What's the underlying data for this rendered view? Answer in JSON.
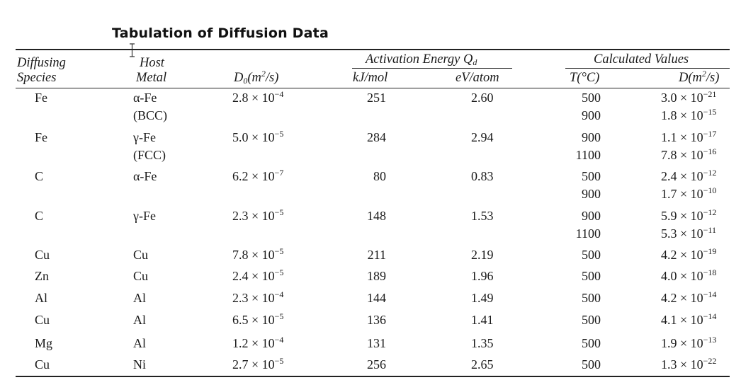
{
  "title": "Tabulation of Diffusion Data",
  "headers": {
    "diffusing": [
      "Diffusing",
      "Species"
    ],
    "host": [
      "Host",
      "Metal"
    ],
    "d0": {
      "main": "D",
      "sub": "0",
      "unit_pre": "(m",
      "unit_sup": "2",
      "unit_post": "/s)"
    },
    "activation": {
      "main": "Activation Energy Q",
      "sub": "d"
    },
    "kj": "kJ/mol",
    "ev": "eV/atom",
    "calculated": "Calculated Values",
    "t": "T(°C)",
    "d": {
      "main": "D(m",
      "sup": "2",
      "post": "/s)"
    }
  },
  "rows": [
    {
      "species": "Fe",
      "host": "α-Fe",
      "host_note": "(BCC)",
      "d0_m": "2.8 × 10",
      "d0_e": "−4",
      "kj": "251",
      "ev": "2.60",
      "t1": "500",
      "d1_m": "3.0 × 10",
      "d1_e": "−21",
      "t2": "900",
      "d2_m": "1.8 × 10",
      "d2_e": "−15"
    },
    {
      "species": "Fe",
      "host": "γ-Fe",
      "host_note": "(FCC)",
      "d0_m": "5.0 × 10",
      "d0_e": "−5",
      "kj": "284",
      "ev": "2.94",
      "t1": "900",
      "d1_m": "1.1 × 10",
      "d1_e": "−17",
      "t2": "1100",
      "d2_m": "7.8 × 10",
      "d2_e": "−16"
    },
    {
      "species": "C",
      "host": "α-Fe",
      "host_note": "",
      "d0_m": "6.2 × 10",
      "d0_e": "−7",
      "kj": "80",
      "ev": "0.83",
      "t1": "500",
      "d1_m": "2.4 × 10",
      "d1_e": "−12",
      "t2": "900",
      "d2_m": "1.7 × 10",
      "d2_e": "−10"
    },
    {
      "species": "C",
      "host": "γ-Fe",
      "host_note": "",
      "d0_m": "2.3 × 10",
      "d0_e": "−5",
      "kj": "148",
      "ev": "1.53",
      "t1": "900",
      "d1_m": "5.9 × 10",
      "d1_e": "−12",
      "t2": "1100",
      "d2_m": "5.3 × 10",
      "d2_e": "−11"
    },
    {
      "species": "Cu",
      "host": "Cu",
      "host_note": "",
      "d0_m": "7.8 × 10",
      "d0_e": "−5",
      "kj": "211",
      "ev": "2.19",
      "t1": "500",
      "d1_m": "4.2 × 10",
      "d1_e": "−19"
    },
    {
      "species": "Zn",
      "host": "Cu",
      "host_note": "",
      "d0_m": "2.4 × 10",
      "d0_e": "−5",
      "kj": "189",
      "ev": "1.96",
      "t1": "500",
      "d1_m": "4.0 × 10",
      "d1_e": "−18"
    },
    {
      "species": "Al",
      "host": "Al",
      "host_note": "",
      "d0_m": "2.3 × 10",
      "d0_e": "−4",
      "kj": "144",
      "ev": "1.49",
      "t1": "500",
      "d1_m": "4.2 × 10",
      "d1_e": "−14"
    },
    {
      "species": "Cu",
      "host": "Al",
      "host_note": "",
      "d0_m": "6.5 × 10",
      "d0_e": "−5",
      "kj": "136",
      "ev": "1.41",
      "t1": "500",
      "d1_m": "4.1 × 10",
      "d1_e": "−14"
    },
    {
      "species": "Mg",
      "host": "Al",
      "host_note": "",
      "d0_m": "1.2 × 10",
      "d0_e": "−4",
      "kj": "131",
      "ev": "1.35",
      "t1": "500",
      "d1_m": "1.9 × 10",
      "d1_e": "−13"
    },
    {
      "species": "Cu",
      "host": "Ni",
      "host_note": "",
      "d0_m": "2.7 × 10",
      "d0_e": "−5",
      "kj": "256",
      "ev": "2.65",
      "t1": "500",
      "d1_m": "1.3 × 10",
      "d1_e": "−22"
    }
  ]
}
